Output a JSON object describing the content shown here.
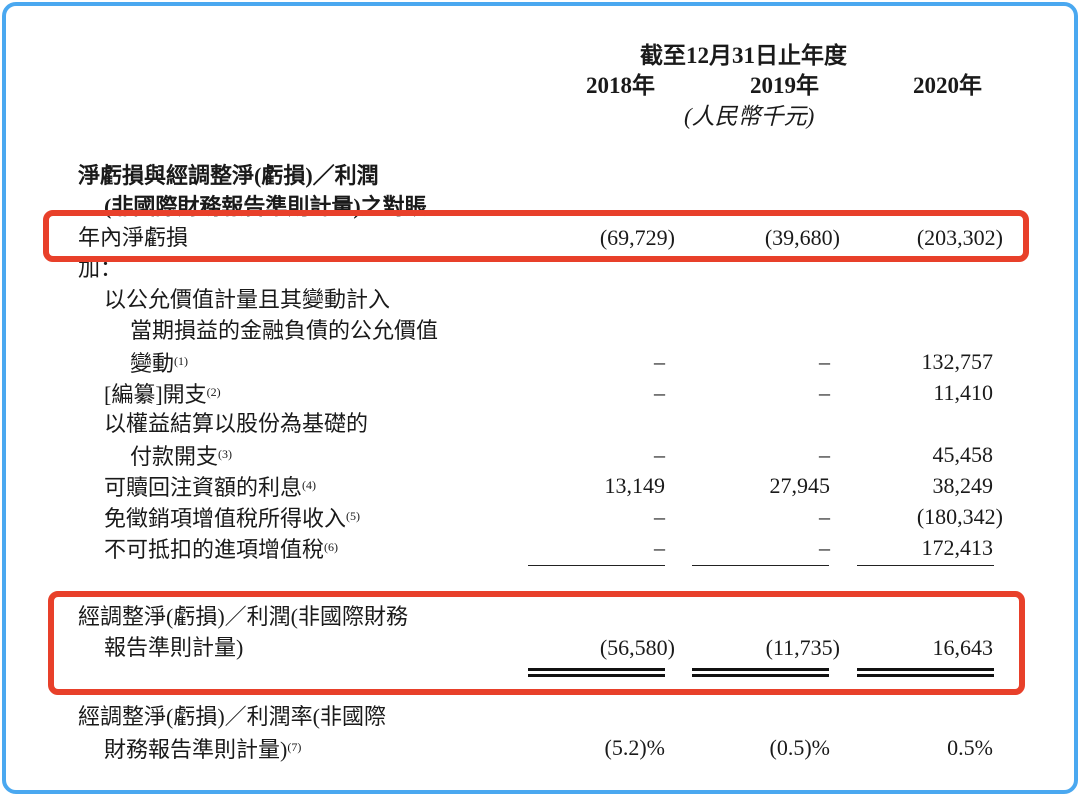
{
  "header": {
    "period": "截至12月31日止年度",
    "years": [
      "2018年",
      "2019年",
      "2020年"
    ],
    "unit": "(人民幣千元)"
  },
  "rows": [
    {
      "label": "淨虧損與經調整淨(虧損)／利潤",
      "indent": 0,
      "bold": true,
      "values": [
        "",
        "",
        ""
      ]
    },
    {
      "label": "(非國際財務報告準則計量)之對賬",
      "indent": 1,
      "bold": true,
      "values": [
        "",
        "",
        ""
      ]
    },
    {
      "label": "年內淨虧損",
      "indent": 0,
      "values": [
        "(69,729)",
        "(39,680)",
        "(203,302)"
      ],
      "highlight": true
    },
    {
      "label": "加：",
      "indent": 0,
      "values": [
        "",
        "",
        ""
      ]
    },
    {
      "label": "以公允價值計量且其變動計入",
      "indent": 1,
      "values": [
        "",
        "",
        ""
      ]
    },
    {
      "label": "當期損益的金融負債的公允價值",
      "indent": 2,
      "values": [
        "",
        "",
        ""
      ]
    },
    {
      "label": "變動",
      "note": "(1)",
      "indent": 2,
      "values": [
        "–",
        "–",
        "132,757"
      ]
    },
    {
      "label": "[編纂]開支",
      "note": "(2)",
      "indent": 1,
      "values": [
        "–",
        "–",
        "11,410"
      ]
    },
    {
      "label": "以權益結算以股份為基礎的",
      "indent": 1,
      "values": [
        "",
        "",
        ""
      ]
    },
    {
      "label": "付款開支",
      "note": "(3)",
      "indent": 2,
      "values": [
        "–",
        "–",
        "45,458"
      ]
    },
    {
      "label": "可贖回注資額的利息",
      "note": "(4)",
      "indent": 1,
      "values": [
        "13,149",
        "27,945",
        "38,249"
      ]
    },
    {
      "label": "免徵銷項增值稅所得收入",
      "note": "(5)",
      "indent": 1,
      "values": [
        "–",
        "–",
        "(180,342)"
      ]
    },
    {
      "label": "不可抵扣的進項增值稅",
      "note": "(6)",
      "indent": 1,
      "values": [
        "–",
        "–",
        "172,413"
      ],
      "rule": "single"
    },
    {
      "spacer": true
    },
    {
      "spacer": true,
      "half": true
    },
    {
      "label": "經調整淨(虧損)／利潤(非國際財務",
      "indent": 0,
      "values": [
        "",
        "",
        ""
      ],
      "highlight": true
    },
    {
      "label": "報告準則計量)",
      "indent": 1,
      "values": [
        "(56,580)",
        "(11,735)",
        "16,643"
      ],
      "rule": "double"
    },
    {
      "spacer": true
    },
    {
      "spacer": true,
      "half": true
    },
    {
      "label": "經調整淨(虧損)／利潤率(非國際",
      "indent": 0,
      "values": [
        "",
        "",
        ""
      ]
    },
    {
      "label": "財務報告準則計量)",
      "note": "(7)",
      "indent": 1,
      "values": [
        "(5.2)%",
        "(0.5)%",
        "0.5%"
      ]
    }
  ],
  "colors": {
    "highlight_box": "#e8402a",
    "frame": "#4aa8f0"
  }
}
